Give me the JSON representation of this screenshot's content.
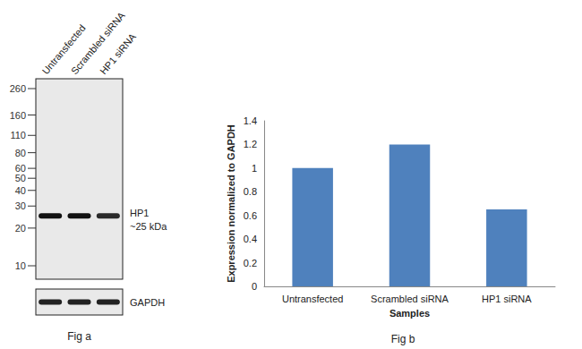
{
  "figure_a": {
    "title": "Fig a",
    "lanes": [
      "Untransfected",
      "Scrambled siRNA",
      "HP1 siRNA"
    ],
    "markers": [
      260,
      160,
      110,
      80,
      60,
      50,
      40,
      30,
      20,
      10
    ],
    "band_name": "HP1",
    "band_label": "~25 kDa",
    "band_kda": 25,
    "loading_control": "GAPDH"
  },
  "chart_data": {
    "type": "bar",
    "title": "Fig b",
    "x_label": "Samples",
    "y_label": "Expression normalized to GAPDH",
    "categories": [
      "Untransfected",
      "Scrambled siRNA",
      "HP1 siRNA"
    ],
    "values": [
      1.0,
      1.2,
      0.65
    ],
    "color": "#4f81bd",
    "ylim": [
      0,
      1.4
    ],
    "yticks": [
      0,
      0.2,
      0.4,
      0.6,
      0.8,
      1,
      1.2,
      1.4
    ],
    "grid": false
  }
}
